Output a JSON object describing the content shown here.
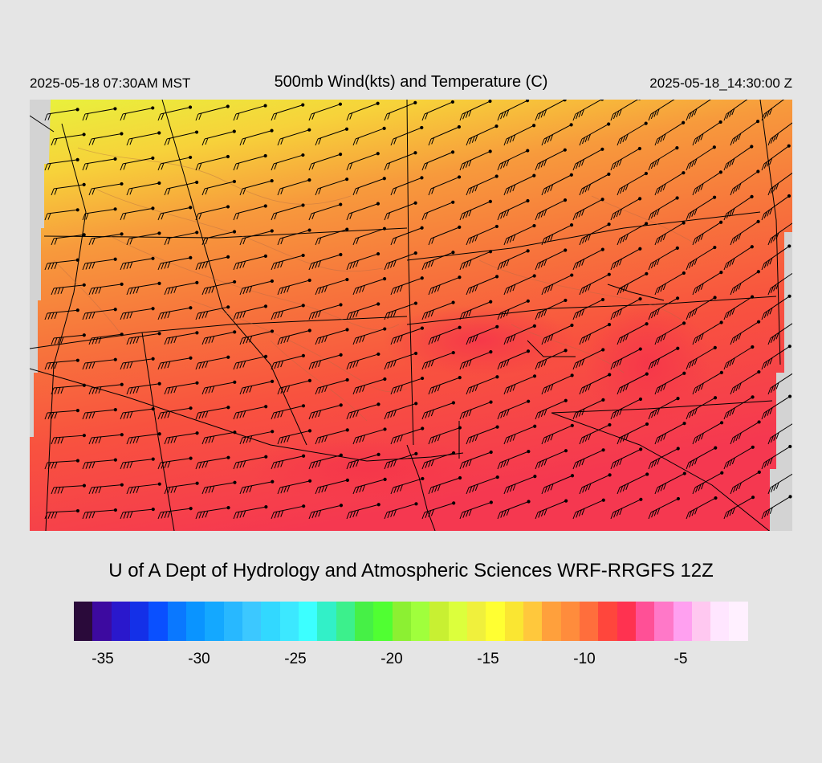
{
  "header": {
    "local_time": "2025-05-18 07:30AM MST",
    "title": "500mb Wind(kts) and Temperature (C)",
    "valid_time": "2025-05-18_14:30:00 Z"
  },
  "credit": "U of A Dept of Hydrology and Atmospheric Sciences WRF-RRGFS 12Z",
  "colorbar": {
    "colors": [
      "#2a0a3a",
      "#3d0aa0",
      "#2a18cc",
      "#1430e8",
      "#0a50ff",
      "#0a78ff",
      "#0a94ff",
      "#14a8ff",
      "#28b8ff",
      "#3cc8ff",
      "#32d8ff",
      "#3ce8ff",
      "#3cffff",
      "#32f0c8",
      "#3cf08c",
      "#46f046",
      "#50ff32",
      "#8cf032",
      "#a0ff3c",
      "#c8f032",
      "#dcff3c",
      "#f0f03c",
      "#ffff32",
      "#fae632",
      "#ffc83c",
      "#ffa03c",
      "#ff8c3c",
      "#ff6e3c",
      "#ff463c",
      "#ff3250",
      "#ff5096",
      "#ff78c8",
      "#ffa0f0",
      "#ffc8f0",
      "#ffe6ff",
      "#fff0ff"
    ],
    "tick_labels": [
      "-35",
      "-30",
      "-25",
      "-20",
      "-15",
      "-10",
      "-5"
    ],
    "tick_values": [
      -35,
      -30,
      -25,
      -20,
      -15,
      -10,
      -5
    ],
    "range": [
      -36.5,
      -1.5
    ]
  }
}
